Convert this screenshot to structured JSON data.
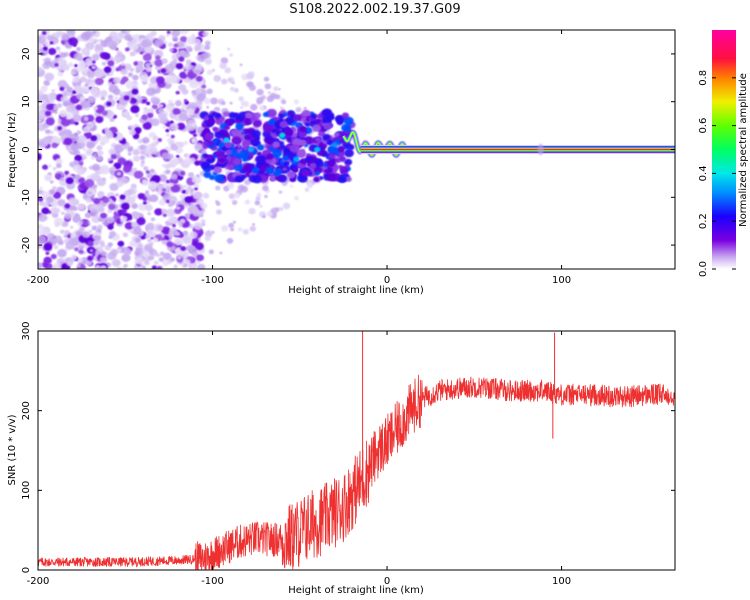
{
  "chart_data": [
    {
      "type": "heatmap",
      "title": "S108.2022.002.19.37.G09",
      "xlabel": "Height of straight line (km)",
      "ylabel": "Frequency (Hz)",
      "xlim": [
        -200,
        165
      ],
      "ylim": [
        -25,
        25
      ],
      "xticks": [
        -200,
        -100,
        0,
        100
      ],
      "yticks": [
        -20,
        -10,
        0,
        10,
        20
      ],
      "colorbar": {
        "label": "Normalized spectral amplitude",
        "range": [
          0.0,
          1.0
        ],
        "ticks": [
          "0.0",
          "0.2",
          "0.4",
          "0.6",
          "0.8"
        ],
        "colors": [
          "#ffffff",
          "#d8c8f4",
          "#8a2be2",
          "#3a00ff",
          "#0060ff",
          "#00d8ff",
          "#00ff90",
          "#30ff00",
          "#c8ff00",
          "#ffd000",
          "#ff6000",
          "#ff0040",
          "#ff00a0"
        ]
      },
      "carrier_line": {
        "frequency": 0,
        "x_start": -15,
        "x_end": 165
      }
    },
    {
      "type": "line",
      "xlabel": "Height of straight line (km)",
      "ylabel": "SNR (10 * v/v)",
      "xlim": [
        -200,
        165
      ],
      "ylim": [
        0,
        300
      ],
      "xticks": [
        -200,
        -100,
        0,
        100
      ],
      "yticks": [
        0,
        100,
        200,
        300
      ],
      "line_color": "#ee3030",
      "series": [
        {
          "name": "SNR",
          "x": [
            -200,
            -150,
            -120,
            -105,
            -95,
            -85,
            -75,
            -65,
            -55,
            -45,
            -35,
            -25,
            -20,
            -15,
            -10,
            -5,
            0,
            5,
            10,
            15,
            20,
            25,
            30,
            40,
            50,
            60,
            70,
            80,
            90,
            100,
            110,
            120,
            130,
            140,
            150,
            165
          ],
          "y": [
            10,
            10,
            12,
            15,
            25,
            35,
            40,
            38,
            40,
            55,
            65,
            80,
            95,
            110,
            130,
            150,
            160,
            175,
            190,
            205,
            215,
            220,
            225,
            228,
            230,
            228,
            225,
            225,
            225,
            220,
            220,
            220,
            218,
            218,
            220,
            220
          ]
        }
      ],
      "spikes": [
        {
          "x": -14,
          "y": 300
        },
        {
          "x": 96,
          "y": 298
        },
        {
          "x": 95,
          "y": 165
        }
      ]
    }
  ]
}
